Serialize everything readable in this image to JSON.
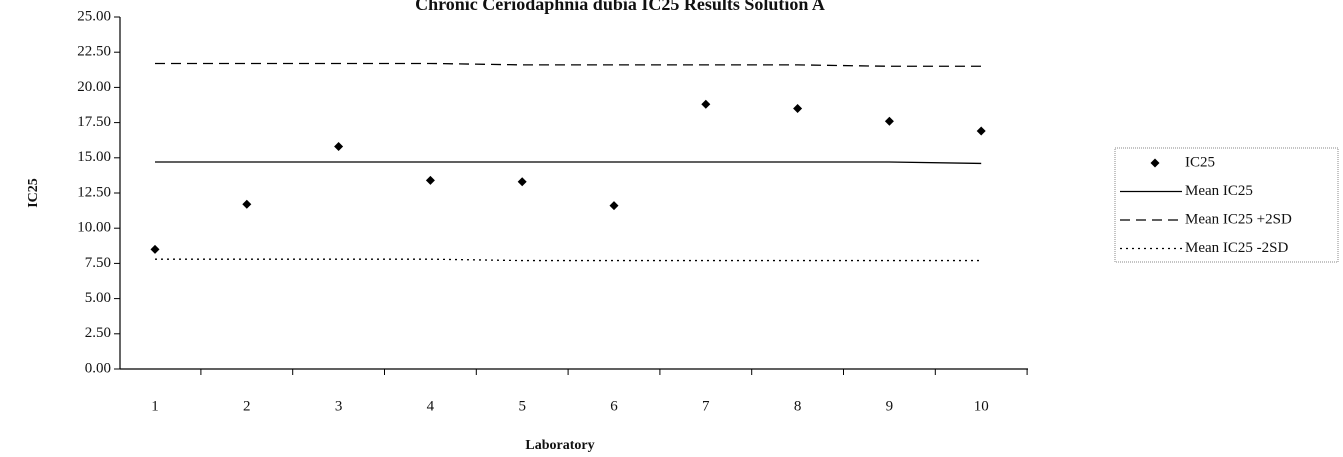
{
  "chart_data": {
    "type": "line",
    "title": "Chronic Ceriodaphnia dubia IC25 Results Solution A",
    "x_label": "Laboratory",
    "y_label": "IC25",
    "categories": [
      "1",
      "2",
      "3",
      "4",
      "5",
      "6",
      "7",
      "8",
      "9",
      "10"
    ],
    "series": [
      {
        "name": "IC25",
        "color": "#000000",
        "style": "markers",
        "values": [
          8.5,
          11.7,
          15.8,
          13.4,
          13.3,
          11.6,
          18.8,
          18.5,
          17.6,
          16.9
        ]
      },
      {
        "name": "Mean IC25",
        "color": "#000000",
        "style": "solid",
        "values": [
          14.7,
          14.7,
          14.7,
          14.7,
          14.7,
          14.7,
          14.7,
          14.7,
          14.7,
          14.6
        ]
      },
      {
        "name": "Mean IC25 +2SD",
        "color": "#000000",
        "style": "dashed",
        "values": [
          21.7,
          21.7,
          21.7,
          21.7,
          21.6,
          21.6,
          21.6,
          21.6,
          21.5,
          21.5
        ]
      },
      {
        "name": "Mean IC25 -2SD",
        "color": "#000000",
        "style": "dotted",
        "values": [
          7.8,
          7.8,
          7.8,
          7.8,
          7.7,
          7.7,
          7.7,
          7.7,
          7.7,
          7.7
        ]
      }
    ],
    "ylim": [
      0,
      25
    ],
    "yticks": [
      {
        "value": 0,
        "label": "0.00"
      },
      {
        "value": 2.5,
        "label": "2.50"
      },
      {
        "value": 5,
        "label": "5.00"
      },
      {
        "value": 7.5,
        "label": "7.50"
      },
      {
        "value": 10,
        "label": "10.00"
      },
      {
        "value": 12.5,
        "label": "12.50"
      },
      {
        "value": 15,
        "label": "15.00"
      },
      {
        "value": 17.5,
        "label": "17.50"
      },
      {
        "value": 20,
        "label": "20.00"
      },
      {
        "value": 22.5,
        "label": "22.50"
      },
      {
        "value": 25,
        "label": "25.00"
      }
    ],
    "grid": false,
    "legend": "right"
  }
}
